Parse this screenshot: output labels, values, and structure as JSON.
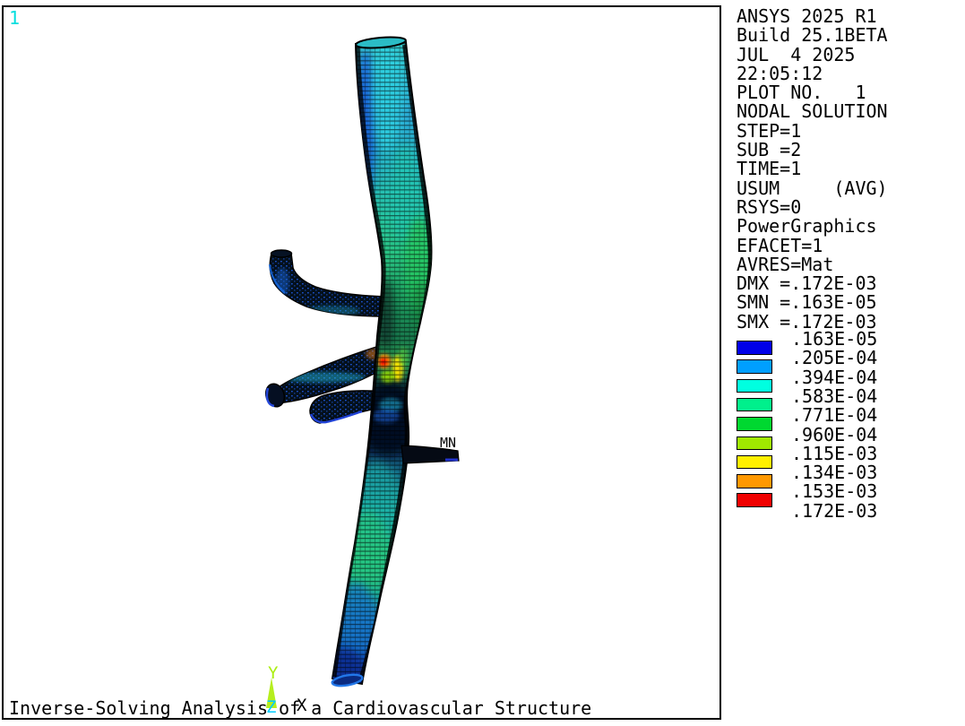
{
  "app": {
    "window_label": "1"
  },
  "analysis_info": {
    "lines": [
      "ANSYS 2025 R1",
      "Build 25.1BETA",
      "JUL  4 2025",
      "22:05:12",
      "PLOT NO.   1",
      "NODAL SOLUTION",
      "STEP=1",
      "SUB =2",
      "TIME=1",
      "USUM     (AVG)",
      "RSYS=0",
      "PowerGraphics",
      "EFACET=1",
      "AVRES=Mat",
      "DMX =.172E-03",
      "SMN =.163E-05",
      "SMX =.172E-03"
    ]
  },
  "legend": {
    "values": [
      ".163E-05",
      ".205E-04",
      ".394E-04",
      ".583E-04",
      ".771E-04",
      ".960E-04",
      ".115E-03",
      ".134E-03",
      ".153E-03",
      ".172E-03"
    ],
    "colors": [
      "#0000e8",
      "#009fff",
      "#00ffe0",
      "#00f08c",
      "#00d830",
      "#a0e800",
      "#fff000",
      "#ff9800",
      "#f00000"
    ]
  },
  "model": {
    "min_node_label": "MN"
  },
  "triad": {
    "x": "X",
    "y": "Y",
    "z": "Z"
  },
  "footer": {
    "title": "Inverse-Solving Analysis of a Cardiovascular Structure"
  }
}
